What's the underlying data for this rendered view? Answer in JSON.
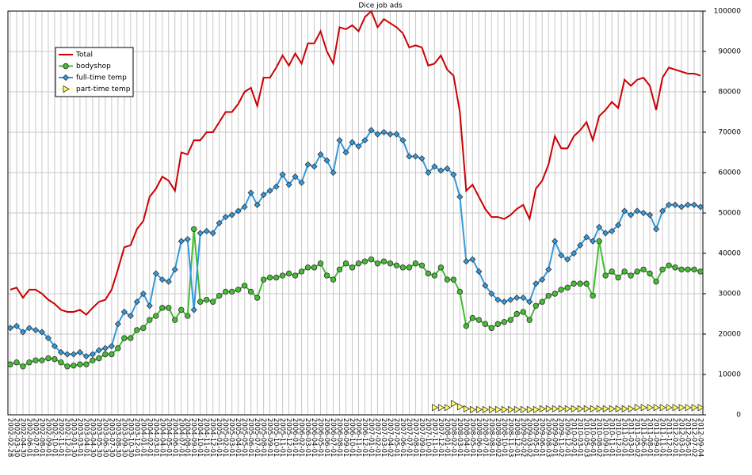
{
  "chart_data": {
    "type": "line",
    "title": "Dice job ads",
    "categories": [
      "2002-02-28",
      "2002-03-30",
      "2002-04-30",
      "2002-06-01",
      "2002-07-01",
      "2002-08-01",
      "2002-09-01",
      "2002-10-01",
      "2002-11-01",
      "2002-12-01",
      "2003-01-30",
      "2003-03-01",
      "2003-04-01",
      "2003-04-30",
      "2003-05-30",
      "2003-06-30",
      "2003-07-30",
      "2003-08-30",
      "2003-09-30",
      "2003-10-30",
      "2003-12-01",
      "2004-01-01",
      "2004-02-01",
      "2004-03-01",
      "2004-04-01",
      "2004-05-01",
      "2004-06-01",
      "2004-07-01",
      "2004-08-01",
      "2004-09-01",
      "2004-10-01",
      "2004-11-01",
      "2004-12-01",
      "2005-01-01",
      "2005-02-01",
      "2005-03-01",
      "2005-04-01",
      "2005-05-01",
      "2005-06-01",
      "2005-07-01",
      "2005-08-01",
      "2005-09-01",
      "2005-10-01",
      "2005-11-01",
      "2005-12-01",
      "2006-01-01",
      "2006-02-01",
      "2006-03-01",
      "2006-04-01",
      "2006-05-01",
      "2006-06-01",
      "2006-07-01",
      "2006-08-01",
      "2006-09-01",
      "2006-10-01",
      "2006-11-01",
      "2006-12-01",
      "2007-01-01",
      "2007-02-01",
      "2007-03-01",
      "2007-04-02",
      "2007-05-01",
      "2007-06-01",
      "2007-07-01",
      "2007-08-01",
      "2007-09-01",
      "2007-10-01",
      "2007-11-01",
      "2007-12-01",
      "2008-01-01",
      "2008-02-01",
      "2008-03-01",
      "2008-04-01",
      "2008-05-01",
      "2008-06-01",
      "2008-07-01",
      "2008-08-01",
      "2008-09-02",
      "2008-10-01",
      "2008-11-03",
      "2008-12-01",
      "2009-02-02",
      "2009-03-02",
      "2009-05-01",
      "2009-06-01",
      "2009-08-03",
      "2009-09-01",
      "2009-11-02",
      "2009-12-01",
      "2010-02-01",
      "2010-03-01",
      "2010-05-03",
      "2010-06-01",
      "2010-08-02",
      "2010-09-01",
      "2010-11-01",
      "2010-12-01",
      "2011-02-01",
      "2011-03-01",
      "2011-05-02",
      "2011-06-01",
      "2011-08-01",
      "2011-09-01",
      "2011-11-01",
      "2011-12-01",
      "2012-02-01",
      "2012-03-01",
      "2012-05-01",
      "2012-07-02",
      "2012-09-04"
    ],
    "series": [
      {
        "name": "Total",
        "color": "#cc0000",
        "marker": "none",
        "values": [
          31000,
          31500,
          29000,
          31000,
          31000,
          30000,
          28500,
          27500,
          26000,
          25500,
          25500,
          26000,
          24800,
          26500,
          28000,
          28500,
          31000,
          36000,
          41500,
          42000,
          46000,
          48000,
          54000,
          56000,
          59000,
          58000,
          55500,
          65000,
          64500,
          68000,
          68000,
          70000,
          70000,
          72500,
          75000,
          75000,
          77000,
          80000,
          81000,
          76500,
          83500,
          83500,
          86000,
          89000,
          86500,
          89500,
          87000,
          92000,
          92000,
          95000,
          90000,
          87000,
          96000,
          95500,
          96500,
          95000,
          98500,
          100000,
          96000,
          98000,
          97000,
          96000,
          94500,
          91000,
          91500,
          91000,
          86500,
          87000,
          89000,
          85500,
          84000,
          75000,
          55500,
          57000,
          54000,
          51000,
          49000,
          49000,
          48500,
          49500,
          51000,
          52000,
          48500,
          56000,
          58000,
          62000,
          69000,
          66000,
          66000,
          69000,
          70500,
          72500,
          68000,
          74000,
          75500,
          77500,
          76000,
          83000,
          81500,
          83000,
          83500,
          81500,
          75500,
          83500,
          86000,
          85500,
          85000,
          84500,
          84500,
          84000
        ]
      },
      {
        "name": "bodyshop",
        "color": "#44bb33",
        "marker": "circle",
        "values": [
          12500,
          13000,
          12000,
          13000,
          13500,
          13500,
          14000,
          13800,
          13000,
          12000,
          12200,
          12500,
          12500,
          13500,
          14000,
          15000,
          15000,
          16500,
          19000,
          19000,
          21000,
          21500,
          23500,
          24500,
          26500,
          26500,
          23500,
          26000,
          24500,
          46000,
          28000,
          28500,
          28000,
          29500,
          30500,
          30500,
          31000,
          32000,
          30500,
          29000,
          33500,
          34000,
          34000,
          34500,
          35000,
          34500,
          35500,
          36500,
          36500,
          37500,
          34500,
          33500,
          36000,
          37500,
          36500,
          37500,
          38000,
          38500,
          37500,
          38000,
          37500,
          37000,
          36500,
          36500,
          37500,
          37000,
          35000,
          34500,
          36500,
          33500,
          33500,
          30500,
          22000,
          24000,
          23500,
          22500,
          21500,
          22500,
          23000,
          23500,
          25000,
          25500,
          23500,
          27000,
          28000,
          29500,
          30000,
          31000,
          31500,
          32500,
          32500,
          32500,
          29500,
          43000,
          34500,
          35500,
          34000,
          35500,
          34500,
          35500,
          36000,
          35000,
          33000,
          36000,
          37000,
          36500,
          36000,
          36000,
          36000,
          35500
        ]
      },
      {
        "name": "full-time temp",
        "color": "#3399dd",
        "marker": "diamond",
        "values": [
          21500,
          22000,
          20500,
          21500,
          21000,
          20500,
          19000,
          17000,
          15500,
          15000,
          15000,
          15500,
          14500,
          15000,
          16000,
          16500,
          17000,
          22500,
          25500,
          24500,
          28000,
          30000,
          27000,
          35000,
          33500,
          33000,
          36000,
          43000,
          43500,
          26000,
          45000,
          45500,
          45000,
          47500,
          49000,
          49500,
          50500,
          51500,
          55000,
          52000,
          54500,
          55500,
          56500,
          59500,
          57000,
          59000,
          57500,
          62000,
          61500,
          64500,
          63000,
          60000,
          68000,
          65000,
          67500,
          66500,
          68000,
          70500,
          69500,
          70000,
          69500,
          69500,
          68000,
          64000,
          64000,
          63500,
          60000,
          61500,
          60500,
          61000,
          59500,
          54000,
          38000,
          38500,
          35500,
          32000,
          30000,
          28500,
          28000,
          28500,
          29000,
          29000,
          28000,
          32500,
          33500,
          36000,
          43000,
          39500,
          38500,
          40000,
          42000,
          44000,
          43000,
          46500,
          45000,
          45500,
          47000,
          50500,
          49500,
          50500,
          50000,
          49500,
          46000,
          50500,
          52000,
          52000,
          51500,
          52000,
          52000,
          51500
        ]
      },
      {
        "name": "part-time temp",
        "color": "#ffff66",
        "marker": "triangle",
        "values": [
          null,
          null,
          null,
          null,
          null,
          null,
          null,
          null,
          null,
          null,
          null,
          null,
          null,
          null,
          null,
          null,
          null,
          null,
          null,
          null,
          null,
          null,
          null,
          null,
          null,
          null,
          null,
          null,
          null,
          null,
          null,
          null,
          null,
          null,
          null,
          null,
          null,
          null,
          null,
          null,
          null,
          null,
          null,
          null,
          null,
          null,
          null,
          null,
          null,
          null,
          null,
          null,
          null,
          null,
          null,
          null,
          null,
          null,
          null,
          null,
          null,
          null,
          null,
          null,
          null,
          null,
          null,
          1800,
          1800,
          1800,
          2800,
          2000,
          1500,
          1300,
          1300,
          1300,
          1300,
          1300,
          1300,
          1300,
          1300,
          1300,
          1300,
          1300,
          1500,
          1500,
          1500,
          1500,
          1500,
          1500,
          1500,
          1500,
          1500,
          1500,
          1500,
          1500,
          1500,
          1500,
          1500,
          1800,
          1800,
          1800,
          1800,
          1800,
          1800,
          1800,
          1800,
          1800,
          1800,
          1800
        ]
      }
    ],
    "ylim": [
      0,
      100000
    ],
    "yticks": [
      0,
      10000,
      20000,
      30000,
      40000,
      50000,
      60000,
      70000,
      80000,
      90000,
      100000
    ],
    "grid": true,
    "legend": "upper left"
  }
}
